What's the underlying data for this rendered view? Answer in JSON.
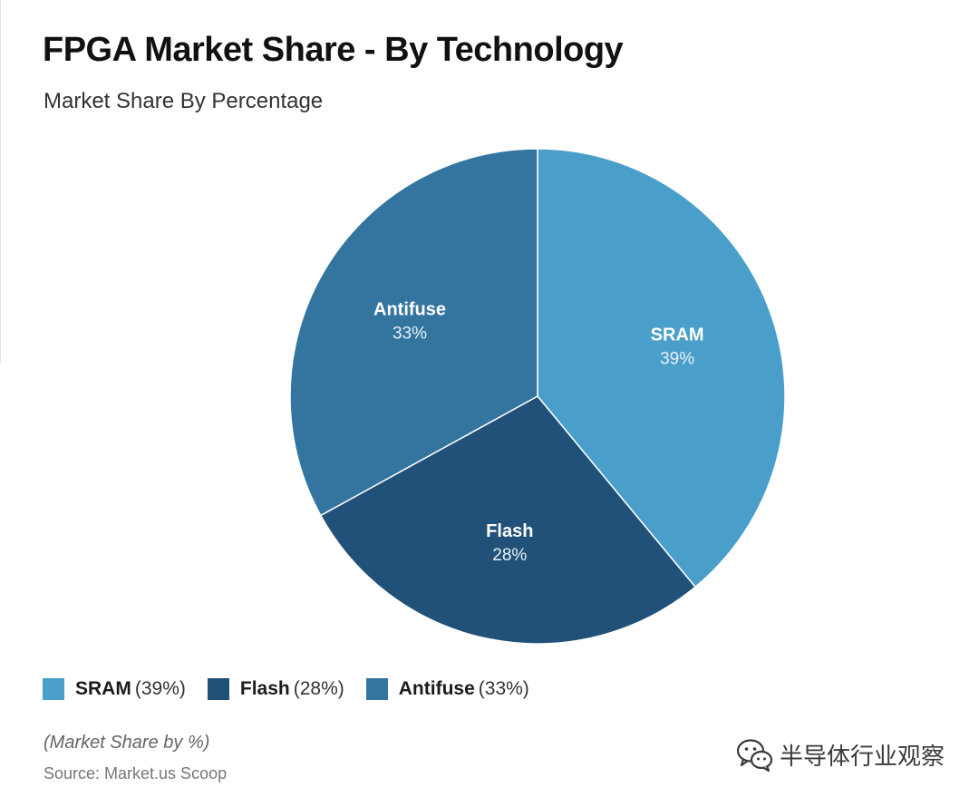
{
  "chart_data": {
    "type": "pie",
    "title": "FPGA Market Share - By Technology",
    "subtitle": "Market Share By Percentage",
    "unit": "%",
    "slices": [
      {
        "label": "SRAM",
        "value": 39,
        "value_label": "39%",
        "legend_value": "(39%)",
        "color": "#4a9fca"
      },
      {
        "label": "Flash",
        "value": 28,
        "value_label": "28%",
        "legend_value": "(28%)",
        "color": "#215178"
      },
      {
        "label": "Antifuse",
        "value": 33,
        "value_label": "33%",
        "legend_value": "(33%)",
        "color": "#33759f"
      }
    ],
    "legend_position": "bottom-left",
    "note": "(Market Share by %)",
    "source": "Source: Market.us Scoop"
  },
  "watermark": {
    "text": "半导体行业观察",
    "icon": "wechat-icon"
  }
}
